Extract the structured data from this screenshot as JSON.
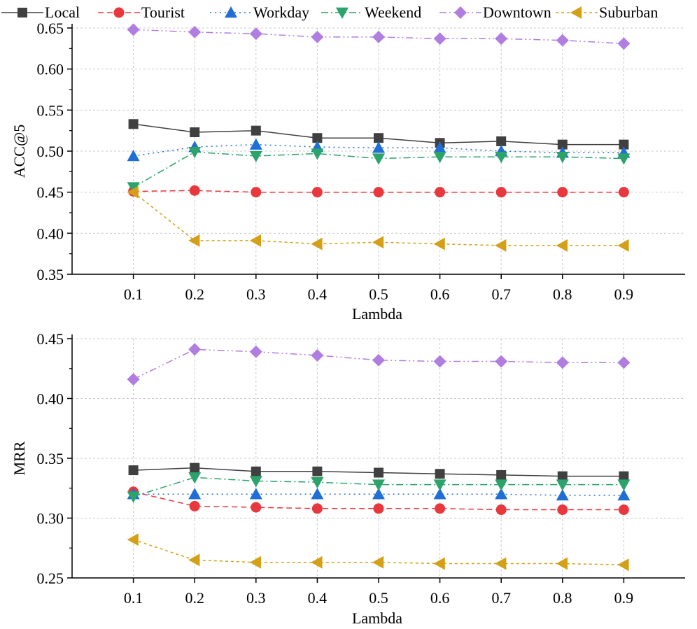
{
  "legend": [
    {
      "key": "local",
      "label": "Local"
    },
    {
      "key": "tourist",
      "label": "Tourist"
    },
    {
      "key": "workday",
      "label": "Workday"
    },
    {
      "key": "weekend",
      "label": "Weekend"
    },
    {
      "key": "downtown",
      "label": "Downtown"
    },
    {
      "key": "suburban",
      "label": "Suburban"
    }
  ],
  "styles": {
    "local": {
      "color": "#404040",
      "marker": "square",
      "dash": "none"
    },
    "tourist": {
      "color": "#e8383d",
      "marker": "circle",
      "dash": "8 5"
    },
    "workday": {
      "color": "#1f6fd6",
      "marker": "triangle-up",
      "dash": "2 5"
    },
    "weekend": {
      "color": "#2ba36a",
      "marker": "triangle-down",
      "dash": "10 4 2 4"
    },
    "downtown": {
      "color": "#b07ee0",
      "marker": "diamond",
      "dash": "10 4 2 4 2 4"
    },
    "suburban": {
      "color": "#d4a017",
      "marker": "triangle-left",
      "dash": "4 4"
    }
  },
  "chart_data": [
    {
      "type": "line",
      "title": "",
      "xlabel": "Lambda",
      "ylabel": "ACC@5",
      "x": [
        0.1,
        0.2,
        0.3,
        0.4,
        0.5,
        0.6,
        0.7,
        0.8,
        0.9
      ],
      "x_tick_labels": [
        "0.1",
        "0.2",
        "0.3",
        "0.4",
        "0.5",
        "0.6",
        "0.7",
        "0.8",
        "0.9"
      ],
      "ylim": [
        0.35,
        0.65
      ],
      "y_ticks": [
        0.35,
        0.4,
        0.45,
        0.5,
        0.55,
        0.6,
        0.65
      ],
      "y_tick_labels": [
        "0.35",
        "0.40",
        "0.45",
        "0.50",
        "0.55",
        "0.60",
        "0.65"
      ],
      "grid": true,
      "series": [
        {
          "key": "local",
          "name": "Local",
          "values": [
            0.533,
            0.523,
            0.525,
            0.516,
            0.516,
            0.51,
            0.512,
            0.508,
            0.508
          ]
        },
        {
          "key": "tourist",
          "name": "Tourist",
          "values": [
            0.451,
            0.452,
            0.45,
            0.45,
            0.45,
            0.45,
            0.45,
            0.45,
            0.45
          ]
        },
        {
          "key": "workday",
          "name": "Workday",
          "values": [
            0.494,
            0.505,
            0.508,
            0.505,
            0.504,
            0.504,
            0.5,
            0.498,
            0.498
          ]
        },
        {
          "key": "weekend",
          "name": "Weekend",
          "values": [
            0.456,
            0.499,
            0.494,
            0.497,
            0.491,
            0.493,
            0.493,
            0.493,
            0.491
          ]
        },
        {
          "key": "downtown",
          "name": "Downtown",
          "values": [
            0.648,
            0.645,
            0.643,
            0.639,
            0.639,
            0.637,
            0.637,
            0.635,
            0.631
          ]
        },
        {
          "key": "suburban",
          "name": "Suburban",
          "values": [
            0.45,
            0.391,
            0.391,
            0.387,
            0.389,
            0.387,
            0.385,
            0.385,
            0.385
          ]
        }
      ]
    },
    {
      "type": "line",
      "title": "",
      "xlabel": "Lambda",
      "ylabel": "MRR",
      "x": [
        0.1,
        0.2,
        0.3,
        0.4,
        0.5,
        0.6,
        0.7,
        0.8,
        0.9
      ],
      "x_tick_labels": [
        "0.1",
        "0.2",
        "0.3",
        "0.4",
        "0.5",
        "0.6",
        "0.7",
        "0.8",
        "0.9"
      ],
      "ylim": [
        0.25,
        0.45
      ],
      "y_ticks": [
        0.25,
        0.3,
        0.35,
        0.4,
        0.45
      ],
      "y_tick_labels": [
        "0.25",
        "0.30",
        "0.35",
        "0.40",
        "0.45"
      ],
      "grid": true,
      "series": [
        {
          "key": "local",
          "name": "Local",
          "values": [
            0.34,
            0.342,
            0.339,
            0.339,
            0.338,
            0.337,
            0.336,
            0.335,
            0.335
          ]
        },
        {
          "key": "tourist",
          "name": "Tourist",
          "values": [
            0.322,
            0.31,
            0.309,
            0.308,
            0.308,
            0.308,
            0.307,
            0.307,
            0.307
          ]
        },
        {
          "key": "workday",
          "name": "Workday",
          "values": [
            0.32,
            0.32,
            0.32,
            0.32,
            0.32,
            0.32,
            0.32,
            0.319,
            0.319
          ]
        },
        {
          "key": "weekend",
          "name": "Weekend",
          "values": [
            0.318,
            0.334,
            0.331,
            0.33,
            0.328,
            0.328,
            0.328,
            0.328,
            0.328
          ]
        },
        {
          "key": "downtown",
          "name": "Downtown",
          "values": [
            0.416,
            0.441,
            0.439,
            0.436,
            0.432,
            0.431,
            0.431,
            0.43,
            0.43
          ]
        },
        {
          "key": "suburban",
          "name": "Suburban",
          "values": [
            0.282,
            0.265,
            0.263,
            0.263,
            0.263,
            0.262,
            0.262,
            0.262,
            0.261
          ]
        }
      ]
    }
  ]
}
